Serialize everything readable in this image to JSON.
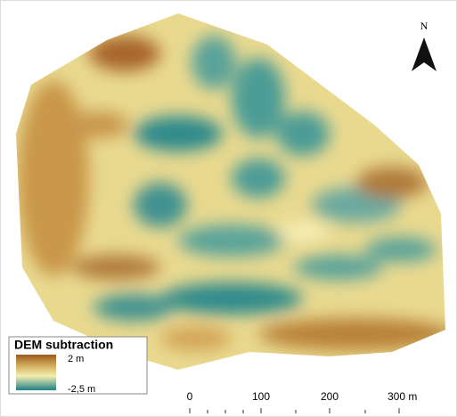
{
  "north_arrow": {
    "label": "N"
  },
  "legend": {
    "title": "DEM subtraction",
    "max_label": "2 m",
    "min_label": "-2,5 m"
  },
  "scale_bar": {
    "labels": [
      "0",
      "100",
      "200",
      "300 m"
    ]
  }
}
